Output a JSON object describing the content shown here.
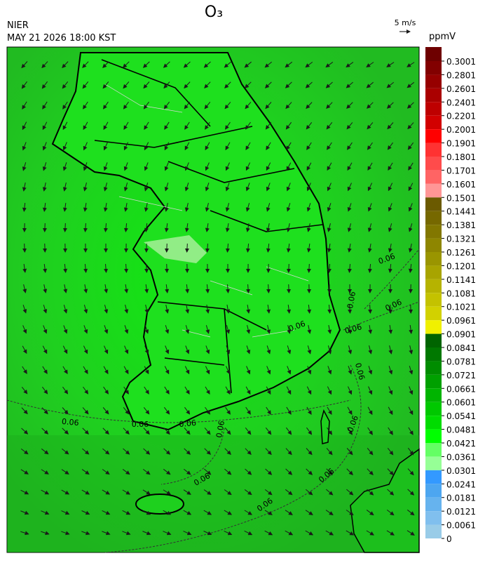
{
  "header": {
    "title": "O₃",
    "agency": "NIER",
    "datetime": "MAY 21 2026 18:00 KST",
    "wind_reference": "5 m/s",
    "unit": "ppmV"
  },
  "contour_label": "0.06",
  "colorbar": {
    "levels": [
      0.3001,
      0.2801,
      0.2601,
      0.2401,
      0.2201,
      0.2001,
      0.1901,
      0.1801,
      0.1701,
      0.1601,
      0.1501,
      0.1441,
      0.1381,
      0.1321,
      0.1261,
      0.1201,
      0.1141,
      0.1081,
      0.1021,
      0.0961,
      0.0901,
      0.0841,
      0.0781,
      0.0721,
      0.0661,
      0.0601,
      0.0541,
      0.0481,
      0.0421,
      0.0361,
      0.0301,
      0.0241,
      0.0181,
      0.0121,
      0.0061,
      0
    ],
    "colors": [
      "#6e0000",
      "#820000",
      "#960000",
      "#aa0000",
      "#be0000",
      "#d20000",
      "#ff0000",
      "#ff3232",
      "#ff4b4b",
      "#ff6464",
      "#ff9696",
      "#6b5a00",
      "#766800",
      "#827700",
      "#8e8600",
      "#9a9500",
      "#a8a400",
      "#b6b300",
      "#c4c200",
      "#d2d100",
      "#f0f000",
      "#006400",
      "#007800",
      "#008c00",
      "#00a000",
      "#00b400",
      "#00c800",
      "#00dc00",
      "#00ff00",
      "#64ff64",
      "#96ff96",
      "#3399ff",
      "#4da6f0",
      "#66b3ee",
      "#80bfee",
      "#99cce8"
    ]
  }
}
